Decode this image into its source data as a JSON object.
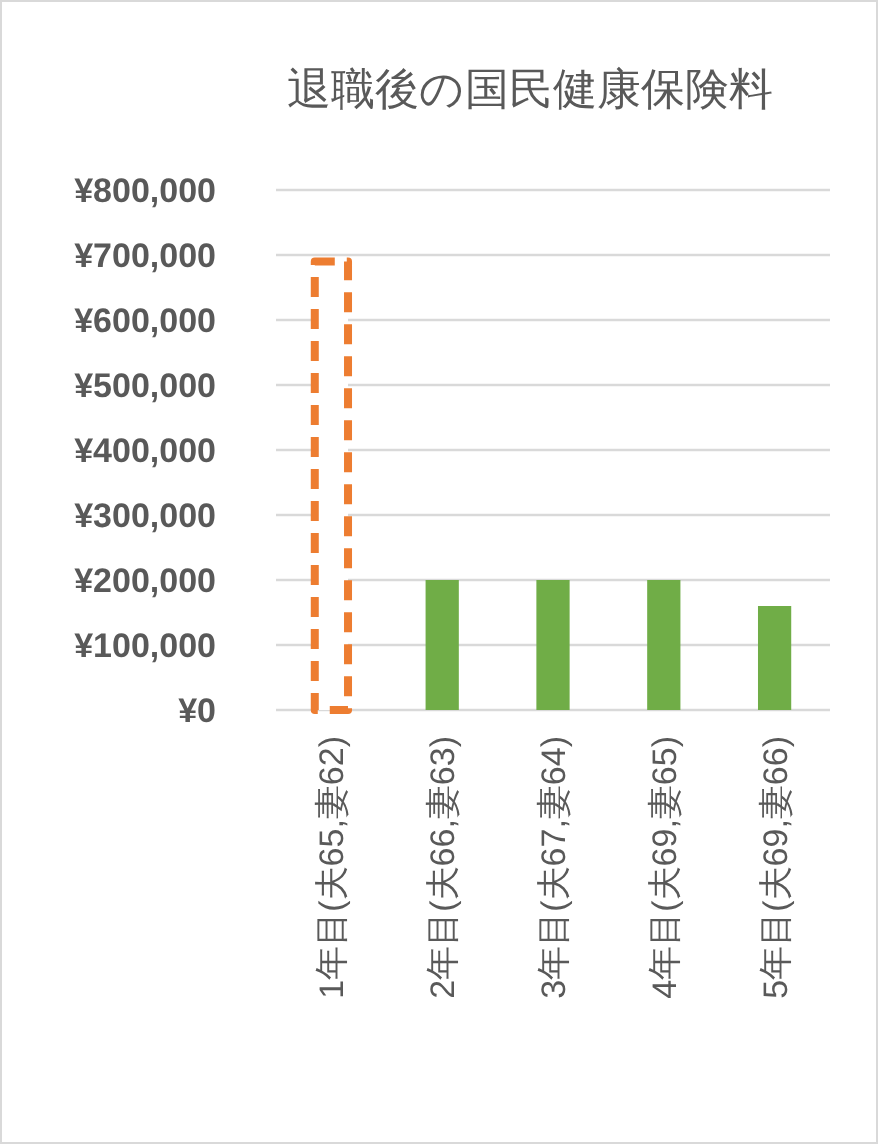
{
  "chart_data": {
    "type": "bar",
    "title": "退職後の国民健康保険料",
    "categories": [
      "1年目(夫65,妻62)",
      "2年目(夫66,妻63)",
      "3年目(夫67,妻64)",
      "4年目(夫69,妻65)",
      "5年目(夫69,妻66)"
    ],
    "series": [
      {
        "color": "#ed7d31",
        "line_style": "dashed",
        "values": [
          690000,
          null,
          null,
          null,
          null
        ]
      },
      {
        "color": "#70ad47",
        "values": [
          null,
          200000,
          200000,
          200000,
          160000
        ]
      }
    ],
    "ylim": [
      0,
      800000
    ],
    "yticks": [
      {
        "value": 0,
        "label": "¥0"
      },
      {
        "value": 100000,
        "label": "¥100,000"
      },
      {
        "value": 200000,
        "label": "¥200,000"
      },
      {
        "value": 300000,
        "label": "¥300,000"
      },
      {
        "value": 400000,
        "label": "¥400,000"
      },
      {
        "value": 500000,
        "label": "¥500,000"
      },
      {
        "value": 600000,
        "label": "¥600,000"
      },
      {
        "value": 700000,
        "label": "¥700,000"
      },
      {
        "value": 800000,
        "label": "¥800,000"
      }
    ],
    "grid": "y"
  }
}
